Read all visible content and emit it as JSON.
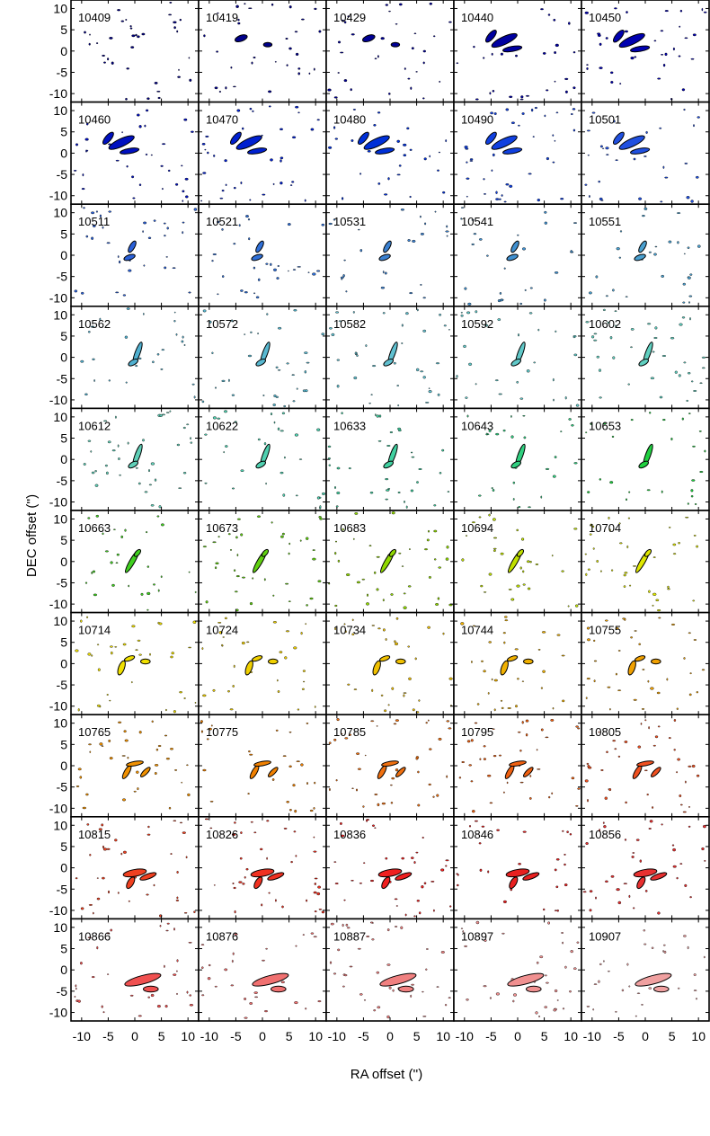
{
  "chart_data": {
    "type": "channel_map",
    "xlabel": "RA offset ('')",
    "ylabel": "DEC offset ('')",
    "xlim": [
      -12,
      12
    ],
    "ylim": [
      -12,
      12
    ],
    "xticks": [
      -10,
      -5,
      0,
      5,
      10
    ],
    "yticks": [
      -10,
      -5,
      0,
      5,
      10
    ],
    "xtick_labels": [
      "-10",
      "-5",
      "0",
      "5",
      "10"
    ],
    "ytick_labels": [
      "-10",
      "-5",
      "0",
      "5",
      "10"
    ],
    "grid": false,
    "rows": 10,
    "cols": 5,
    "panels": [
      {
        "label": "10409",
        "color": "#000080"
      },
      {
        "label": "10419",
        "color": "#00008a"
      },
      {
        "label": "10429",
        "color": "#000095"
      },
      {
        "label": "10440",
        "color": "#0000a0"
      },
      {
        "label": "10450",
        "color": "#0000b0"
      },
      {
        "label": "10460",
        "color": "#0010c0"
      },
      {
        "label": "10470",
        "color": "#0020d0"
      },
      {
        "label": "10480",
        "color": "#0030d8"
      },
      {
        "label": "10490",
        "color": "#1040e0"
      },
      {
        "label": "10501",
        "color": "#2050e0"
      },
      {
        "label": "10511",
        "color": "#2a60d8"
      },
      {
        "label": "10521",
        "color": "#3070d8"
      },
      {
        "label": "10531",
        "color": "#3a80d0"
      },
      {
        "label": "10541",
        "color": "#4090d0"
      },
      {
        "label": "10551",
        "color": "#4aa0d0"
      },
      {
        "label": "10562",
        "color": "#50b0d0"
      },
      {
        "label": "10572",
        "color": "#58b8d0"
      },
      {
        "label": "10582",
        "color": "#60c0d0"
      },
      {
        "label": "10592",
        "color": "#60c8c8"
      },
      {
        "label": "10602",
        "color": "#60d0c0"
      },
      {
        "label": "10612",
        "color": "#60d0b8"
      },
      {
        "label": "10622",
        "color": "#50d0b0"
      },
      {
        "label": "10633",
        "color": "#40d0a0"
      },
      {
        "label": "10643",
        "color": "#30d080"
      },
      {
        "label": "10653",
        "color": "#20d040"
      },
      {
        "label": "10663",
        "color": "#40d020"
      },
      {
        "label": "10673",
        "color": "#60d010"
      },
      {
        "label": "10683",
        "color": "#90d800"
      },
      {
        "label": "10694",
        "color": "#c0e000"
      },
      {
        "label": "10704",
        "color": "#e0e800"
      },
      {
        "label": "10714",
        "color": "#f0e000"
      },
      {
        "label": "10724",
        "color": "#f0d000"
      },
      {
        "label": "10734",
        "color": "#f0c000"
      },
      {
        "label": "10744",
        "color": "#f0b000"
      },
      {
        "label": "10755",
        "color": "#f0a000"
      },
      {
        "label": "10765",
        "color": "#f09000"
      },
      {
        "label": "10775",
        "color": "#f08000"
      },
      {
        "label": "10785",
        "color": "#f07010"
      },
      {
        "label": "10795",
        "color": "#f06010"
      },
      {
        "label": "10805",
        "color": "#f05020"
      },
      {
        "label": "10815",
        "color": "#f04020"
      },
      {
        "label": "10826",
        "color": "#f03020"
      },
      {
        "label": "10836",
        "color": "#f02020"
      },
      {
        "label": "10846",
        "color": "#e82020"
      },
      {
        "label": "10856",
        "color": "#e83030"
      },
      {
        "label": "10866",
        "color": "#f05050"
      },
      {
        "label": "10876",
        "color": "#f07070"
      },
      {
        "label": "10887",
        "color": "#f08080"
      },
      {
        "label": "10897",
        "color": "#f09090"
      },
      {
        "label": "10907",
        "color": "#f0a0a0"
      }
    ]
  }
}
